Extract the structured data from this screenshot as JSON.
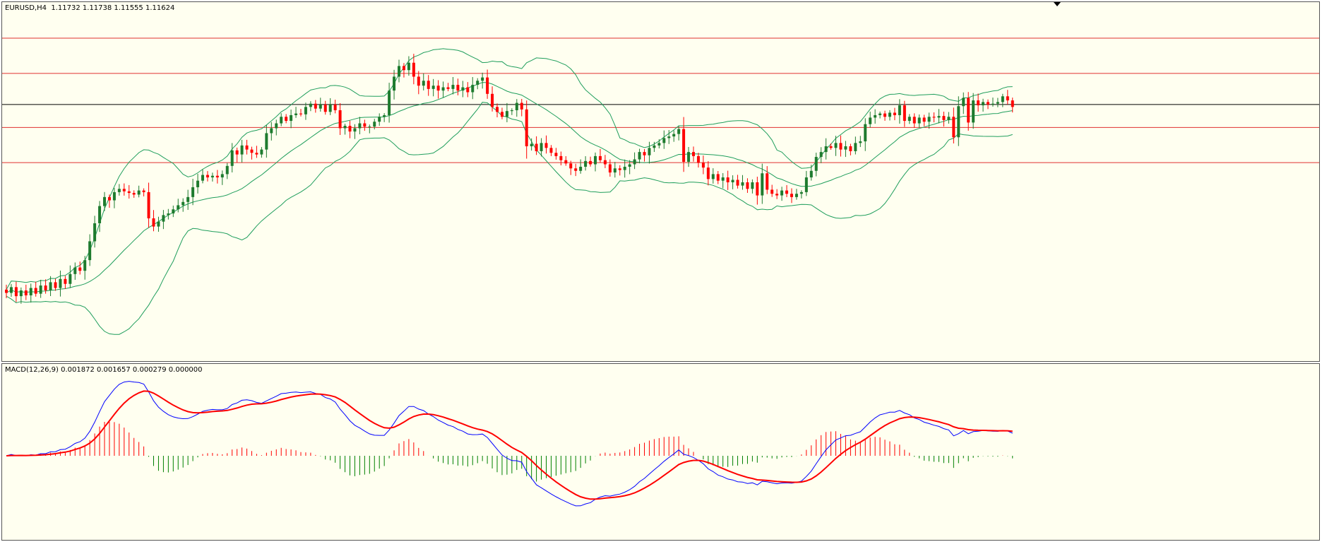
{
  "window": {
    "symbol_caption": "EURUSD,H4  1.11732 1.11738 1.11555 1.11624",
    "macd_caption": "MACD(12,26,9) 0.001872 0.001657 0.000279 0.000000"
  },
  "colors": {
    "background": "#fffff0",
    "bull_candle": "#1e7b2e",
    "bear_candle": "#ff0000",
    "bollinger": "#1f9e5c",
    "level_lines": "#e03030",
    "current_price_line": "#000000",
    "macd_main": "#0000ff",
    "macd_signal": "#ff0000",
    "histogram_positive": "#ff0000",
    "histogram_negative": "#008000"
  },
  "chart_data": [
    {
      "type": "candlestick",
      "title": "EURUSD,H4",
      "ohlc_last": {
        "open": 1.11732,
        "high": 1.11738,
        "low": 1.11555,
        "close": 1.11624
      },
      "ylim": [
        1.085,
        1.129
      ],
      "level_lines": [
        1.1246,
        1.1203,
        1.1137,
        1.1094
      ],
      "current_price_line": 1.1165,
      "closes": [
        1.0935,
        1.0942,
        1.0931,
        1.0938,
        1.0932,
        1.0941,
        1.0934,
        1.0944,
        1.0938,
        1.0948,
        1.0941,
        1.0952,
        1.0946,
        1.0958,
        1.0966,
        1.0962,
        1.0975,
        1.0998,
        1.102,
        1.1041,
        1.1052,
        1.1048,
        1.1058,
        1.1062,
        1.1059,
        1.1057,
        1.1055,
        1.106,
        1.1058,
        1.1026,
        1.1016,
        1.1022,
        1.103,
        1.1032,
        1.1037,
        1.1042,
        1.1046,
        1.1052,
        1.1064,
        1.1072,
        1.1079,
        1.1076,
        1.1078,
        1.1076,
        1.108,
        1.109,
        1.1109,
        1.1104,
        1.1115,
        1.111,
        1.1106,
        1.1104,
        1.111,
        1.113,
        1.1136,
        1.1142,
        1.115,
        1.1145,
        1.1152,
        1.1154,
        1.1153,
        1.1162,
        1.1166,
        1.116,
        1.1165,
        1.1156,
        1.1165,
        1.1158,
        1.1136,
        1.1139,
        1.1132,
        1.1136,
        1.1142,
        1.1138,
        1.1138,
        1.1144,
        1.115,
        1.1152,
        1.1182,
        1.1199,
        1.1212,
        1.1207,
        1.1216,
        1.1199,
        1.1188,
        1.1194,
        1.1184,
        1.1188,
        1.1182,
        1.1186,
        1.1184,
        1.1189,
        1.1182,
        1.1186,
        1.118,
        1.1189,
        1.1194,
        1.1198,
        1.1178,
        1.1162,
        1.1156,
        1.115,
        1.1157,
        1.1158,
        1.1167,
        1.1159,
        1.1114,
        1.1117,
        1.1108,
        1.1118,
        1.1112,
        1.1106,
        1.1102,
        1.1097,
        1.1093,
        1.1087,
        1.1084,
        1.1089,
        1.1096,
        1.1092,
        1.1102,
        1.1097,
        1.1092,
        1.1082,
        1.1087,
        1.1085,
        1.1089,
        1.1092,
        1.1098,
        1.1107,
        1.1103,
        1.1112,
        1.1115,
        1.1118,
        1.1124,
        1.1126,
        1.1129,
        1.1135,
        1.1095,
        1.1107,
        1.1102,
        1.1094,
        1.1088,
        1.1074,
        1.108,
        1.1072,
        1.1076,
        1.107,
        1.1073,
        1.1066,
        1.107,
        1.1062,
        1.107,
        1.1054,
        1.1081,
        1.1061,
        1.1056,
        1.1054,
        1.106,
        1.1056,
        1.1052,
        1.1056,
        1.1058,
        1.1076,
        1.1084,
        1.1101,
        1.1107,
        1.1114,
        1.1112,
        1.1118,
        1.111,
        1.1114,
        1.1108,
        1.1118,
        1.112,
        1.1141,
        1.1149,
        1.1152,
        1.1154,
        1.115,
        1.1155,
        1.1152,
        1.1164,
        1.1145,
        1.115,
        1.1142,
        1.1149,
        1.1144,
        1.115,
        1.1149,
        1.1151,
        1.1146,
        1.115,
        1.1125,
        1.1163,
        1.1173,
        1.1143,
        1.117,
        1.1164,
        1.1168,
        1.1165,
        1.1166,
        1.1168,
        1.1175,
        1.117,
        1.1162
      ]
    },
    {
      "type": "macd",
      "title": "MACD(12,26,9)",
      "last_values": {
        "main": 0.001872,
        "signal": 0.001657,
        "histogram": 0.000279,
        "extra": 0.0
      },
      "fast": 12,
      "slow": 26,
      "signal_period": 9,
      "zero_line": 0.0
    }
  ]
}
